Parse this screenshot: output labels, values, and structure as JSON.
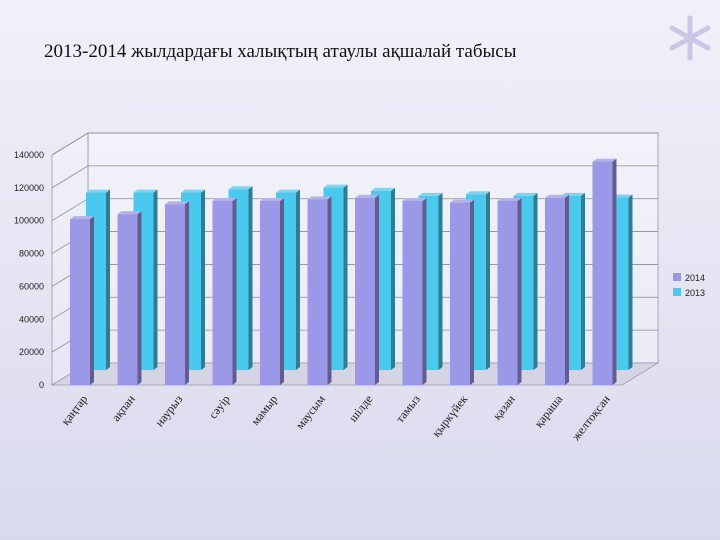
{
  "slide": {
    "title": "2013-2014 жылдардағы халықтың атаулы ақшалай табысы"
  },
  "decor": {
    "icon": "asterisk-icon",
    "color": "#c8c8e6"
  },
  "chart_data": {
    "type": "bar",
    "title": "",
    "xlabel": "",
    "ylabel": "",
    "ylim": [
      0,
      140000
    ],
    "yticks": [
      0,
      20000,
      40000,
      60000,
      80000,
      100000,
      120000,
      140000
    ],
    "grid": true,
    "legend_position": "right",
    "categories": [
      "қаңтар",
      "ақпан",
      "наурыз",
      "сәуір",
      "мамыр",
      "маусым",
      "шілде",
      "тамыз",
      "қыркүйек",
      "қазан",
      "қараша",
      "желтоқсан"
    ],
    "series": [
      {
        "name": "2014",
        "color": "#9b98e8",
        "values": [
          101000,
          104000,
          110000,
          112000,
          112000,
          113000,
          114000,
          112000,
          111000,
          112000,
          114000,
          136000
        ]
      },
      {
        "name": "2013",
        "color": "#4ac9ee",
        "values": [
          108000,
          108000,
          108000,
          110000,
          108000,
          111000,
          109000,
          106000,
          107000,
          106000,
          106000,
          105000
        ]
      }
    ]
  }
}
